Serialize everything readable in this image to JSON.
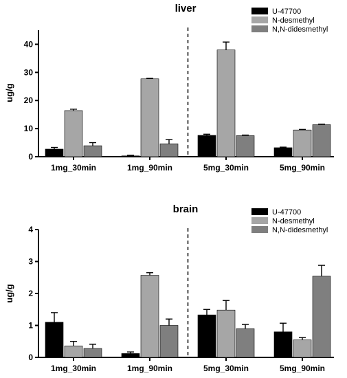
{
  "colors": {
    "U-47700": "#000000",
    "N-desmethyl": "#a6a6a6",
    "N,N-didesmethyl": "#7f7f7f"
  },
  "chart_data": [
    {
      "type": "bar",
      "title": "liver",
      "ylabel": "ug/g",
      "xlabel": "",
      "ylim": [
        0,
        45
      ],
      "yticks": [
        0,
        10,
        20,
        30,
        40
      ],
      "categories": [
        "1mg_30min",
        "1mg_90min",
        "5mg_30min",
        "5mg_90min"
      ],
      "series": [
        {
          "name": "U-47700",
          "values": [
            2.7,
            0.3,
            7.6,
            3.2
          ],
          "errors": [
            0.6,
            0.2,
            0.4,
            0.2
          ]
        },
        {
          "name": "N-desmethyl",
          "values": [
            16.4,
            27.7,
            38.0,
            9.5
          ],
          "errors": [
            0.5,
            0.2,
            2.8,
            0.2
          ]
        },
        {
          "name": "N,N-didesmethyl",
          "values": [
            3.9,
            4.6,
            7.5,
            11.4
          ],
          "errors": [
            1.1,
            1.5,
            0.2,
            0.2
          ]
        }
      ],
      "legend": "top-right",
      "divider_after_category": 1
    },
    {
      "type": "bar",
      "title": "brain",
      "ylabel": "ug/g",
      "xlabel": "",
      "ylim": [
        0,
        4
      ],
      "yticks": [
        0,
        1,
        2,
        3,
        4
      ],
      "categories": [
        "1mg_30min",
        "1mg_90min",
        "5mg_30min",
        "5mg_90min"
      ],
      "series": [
        {
          "name": "U-47700",
          "values": [
            1.1,
            0.12,
            1.33,
            0.8
          ],
          "errors": [
            0.3,
            0.05,
            0.17,
            0.27
          ]
        },
        {
          "name": "N-desmethyl",
          "values": [
            0.36,
            2.57,
            1.48,
            0.55
          ],
          "errors": [
            0.14,
            0.08,
            0.3,
            0.07
          ]
        },
        {
          "name": "N,N-didesmethyl",
          "values": [
            0.28,
            1.0,
            0.9,
            2.54
          ],
          "errors": [
            0.13,
            0.2,
            0.13,
            0.34
          ]
        }
      ],
      "legend": "top-right",
      "divider_after_category": 1
    }
  ]
}
